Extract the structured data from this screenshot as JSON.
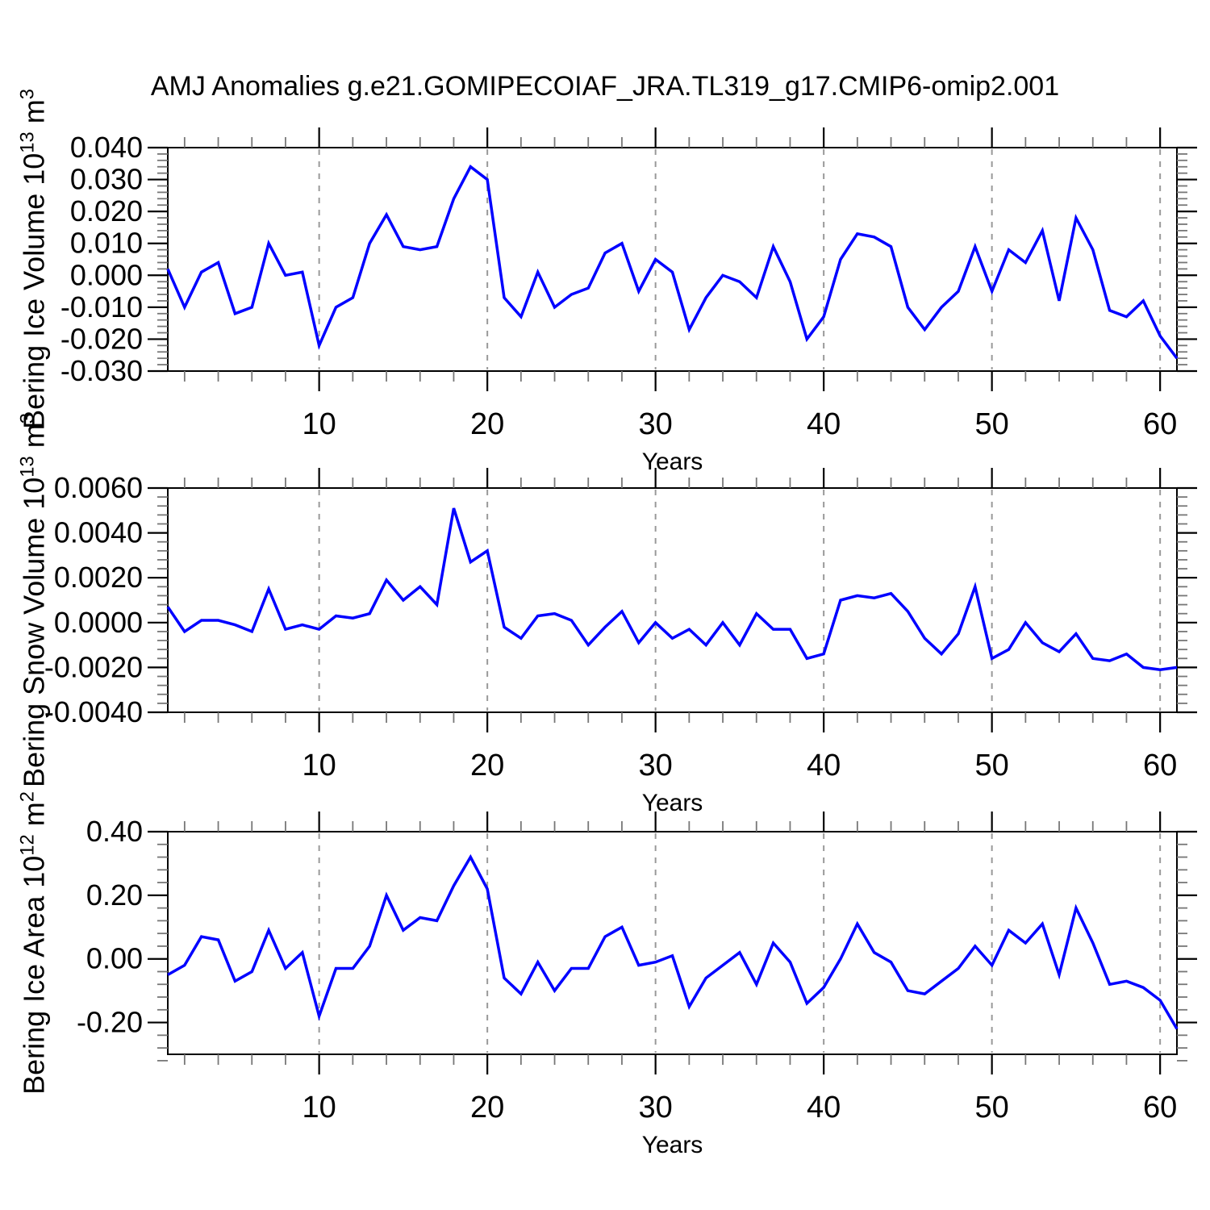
{
  "chart_data": {
    "type": "line",
    "title": "AMJ Anomalies g.e21.GOMIPECOIAF_JRA.TL319_g17.CMIP6-omip2.001",
    "xlabel": "Years",
    "x_start": 1,
    "x_end": 61,
    "x_major_ticks": [
      10,
      20,
      30,
      40,
      50,
      60
    ],
    "x_tick_labels": [
      "10",
      "20",
      "30",
      "40",
      "50",
      "60"
    ],
    "x_minor_step": 2,
    "grid": "vertical-dashed-at-major-ticks",
    "legend": "none",
    "x": [
      1,
      2,
      3,
      4,
      5,
      6,
      7,
      8,
      9,
      10,
      11,
      12,
      13,
      14,
      15,
      16,
      17,
      18,
      19,
      20,
      21,
      22,
      23,
      24,
      25,
      26,
      27,
      28,
      29,
      30,
      31,
      32,
      33,
      34,
      35,
      36,
      37,
      38,
      39,
      40,
      41,
      42,
      43,
      44,
      45,
      46,
      47,
      48,
      49,
      50,
      51,
      52,
      53,
      54,
      55,
      56,
      57,
      58,
      59,
      60,
      61
    ],
    "panels": [
      {
        "name": "bering-ice-volume",
        "ylabel_text": "Bering Ice Volume 10^13 m^3",
        "ylabel_base": "Bering Ice Volume 10",
        "ylabel_sup1": "13",
        "ylabel_mid": " m",
        "ylabel_sup2": "3",
        "ylim": [
          -0.03,
          0.04
        ],
        "y_major_step": 0.01,
        "y_minor_step": 0.002,
        "ytick_values": [
          0.04,
          0.03,
          0.02,
          0.01,
          0.0,
          -0.01,
          -0.02,
          -0.03
        ],
        "ytick_labels": [
          "0.040",
          "0.030",
          "0.020",
          "0.010",
          "0.000",
          "-0.010",
          "-0.020",
          "-0.030"
        ],
        "values": [
          0.002,
          -0.01,
          0.001,
          0.004,
          -0.012,
          -0.01,
          0.01,
          0.0,
          0.001,
          -0.022,
          -0.01,
          -0.007,
          0.01,
          0.019,
          0.009,
          0.008,
          0.009,
          0.024,
          0.034,
          0.03,
          -0.007,
          -0.013,
          0.001,
          -0.01,
          -0.006,
          -0.004,
          0.007,
          0.01,
          -0.005,
          0.005,
          0.001,
          -0.017,
          -0.007,
          0.0,
          -0.002,
          -0.007,
          0.009,
          -0.002,
          -0.02,
          -0.013,
          0.005,
          0.013,
          0.012,
          0.009,
          -0.01,
          -0.017,
          -0.01,
          -0.005,
          0.009,
          -0.005,
          0.008,
          0.004,
          0.014,
          -0.008,
          0.018,
          0.008,
          -0.011,
          -0.013,
          -0.008,
          -0.019,
          -0.026
        ]
      },
      {
        "name": "bering-snow-volume",
        "ylabel_text": "Bering Snow Volume 10^13 m^3",
        "ylabel_base": "Bering Snow Volume 10",
        "ylabel_sup1": "13",
        "ylabel_mid": " m",
        "ylabel_sup2": "3",
        "ylim": [
          -0.004,
          0.006
        ],
        "y_major_step": 0.002,
        "y_minor_step": 0.0004,
        "ytick_values": [
          0.006,
          0.004,
          0.002,
          0.0,
          -0.002,
          -0.004
        ],
        "ytick_labels": [
          "0.0060",
          "0.0040",
          "0.0020",
          "0.0000",
          "-0.0020",
          "-0.0040"
        ],
        "values": [
          0.0007,
          -0.0004,
          0.0001,
          0.0001,
          -0.0001,
          -0.0004,
          0.0015,
          -0.0003,
          -0.0001,
          -0.0003,
          0.0003,
          0.0002,
          0.0004,
          0.0019,
          0.001,
          0.0016,
          0.0008,
          0.0051,
          0.0027,
          0.0032,
          -0.0002,
          -0.0007,
          0.0003,
          0.0004,
          0.0001,
          -0.001,
          -0.0002,
          0.0005,
          -0.0009,
          0.0,
          -0.0007,
          -0.0003,
          -0.001,
          0.0,
          -0.001,
          0.0004,
          -0.0003,
          -0.0003,
          -0.0016,
          -0.0014,
          0.001,
          0.0012,
          0.0011,
          0.0013,
          0.0005,
          -0.0007,
          -0.0014,
          -0.0005,
          0.0016,
          -0.0016,
          -0.0012,
          0.0,
          -0.0009,
          -0.0013,
          -0.0005,
          -0.0016,
          -0.0017,
          -0.0014,
          -0.002,
          -0.0021,
          -0.002
        ]
      },
      {
        "name": "bering-ice-area",
        "ylabel_text": "Bering Ice Area 10^12 m^2",
        "ylabel_base": "Bering Ice Area 10",
        "ylabel_sup1": "12",
        "ylabel_mid": " m",
        "ylabel_sup2": "2",
        "ylim": [
          -0.3,
          0.4
        ],
        "y_major_step": 0.2,
        "y_minor_step": 0.04,
        "ytick_values": [
          0.4,
          0.2,
          0.0,
          -0.2
        ],
        "ytick_labels": [
          "0.40",
          "0.20",
          "0.00",
          "-0.20"
        ],
        "values": [
          -0.05,
          -0.02,
          0.07,
          0.06,
          -0.07,
          -0.04,
          0.09,
          -0.03,
          0.02,
          -0.18,
          -0.03,
          -0.03,
          0.04,
          0.2,
          0.09,
          0.13,
          0.12,
          0.23,
          0.32,
          0.22,
          -0.06,
          -0.11,
          -0.01,
          -0.1,
          -0.03,
          -0.03,
          0.07,
          0.1,
          -0.02,
          -0.01,
          0.01,
          -0.15,
          -0.06,
          -0.02,
          0.02,
          -0.08,
          0.05,
          -0.01,
          -0.14,
          -0.09,
          0.0,
          0.11,
          0.02,
          -0.01,
          -0.1,
          -0.11,
          -0.07,
          -0.03,
          0.04,
          -0.02,
          0.09,
          0.05,
          0.11,
          -0.05,
          0.16,
          0.05,
          -0.08,
          -0.07,
          -0.09,
          -0.13,
          -0.22
        ]
      }
    ],
    "colors": {
      "line": "#0000ff",
      "frame": "#000000",
      "major_tick": "#000000",
      "minor_tick": "#777777",
      "grid": "#999999",
      "text": "#000000"
    }
  }
}
